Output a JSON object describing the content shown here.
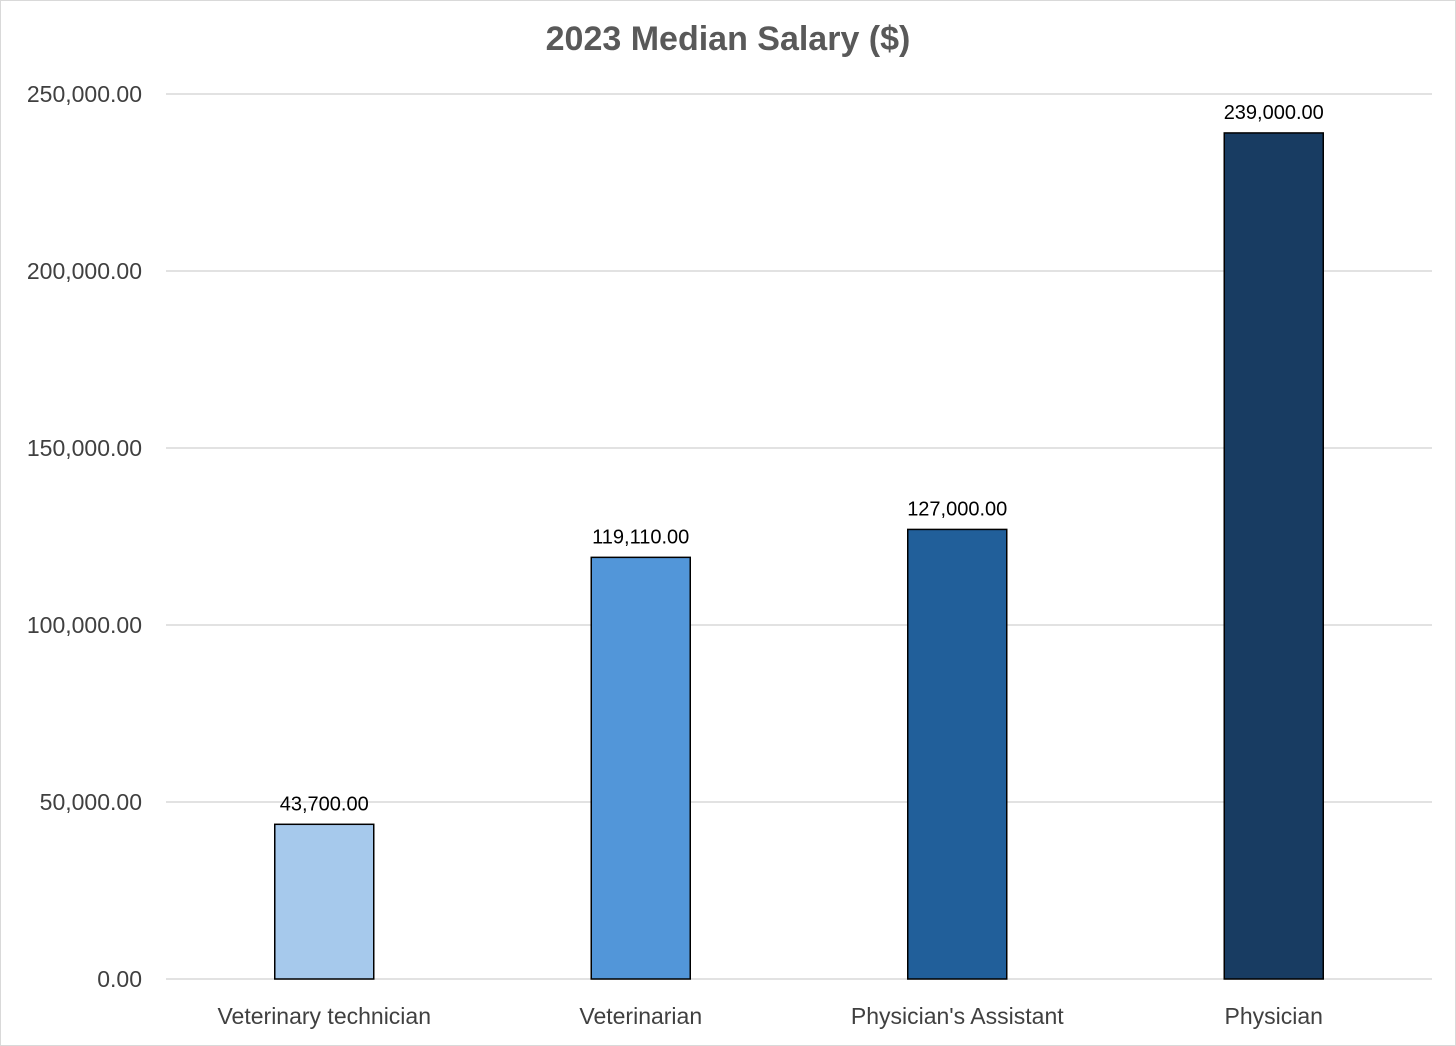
{
  "chart_data": {
    "type": "bar",
    "title": "2023 Median Salary ($)",
    "xlabel": "",
    "ylabel": "",
    "categories": [
      "Veterinary technician",
      "Veterinarian",
      "Physician's Assistant",
      "Physician"
    ],
    "values": [
      43700,
      119110,
      127000,
      239000
    ],
    "data_labels": [
      "43,700.00",
      "119,110.00",
      "127,000.00",
      "239,000.00"
    ],
    "bar_colors": [
      "#a6c9ec",
      "#5296d9",
      "#215f9a",
      "#183c62"
    ],
    "ylim": [
      0,
      250000
    ],
    "yticks": [
      0,
      50000,
      100000,
      150000,
      200000,
      250000
    ],
    "ytick_labels": [
      "0.00",
      "50,000.00",
      "100,000.00",
      "150,000.00",
      "200,000.00",
      "250,000.00"
    ],
    "grid": true,
    "legend": "none",
    "gridline_color": "#d9d9d9",
    "bar_outline_color": "#000000"
  }
}
